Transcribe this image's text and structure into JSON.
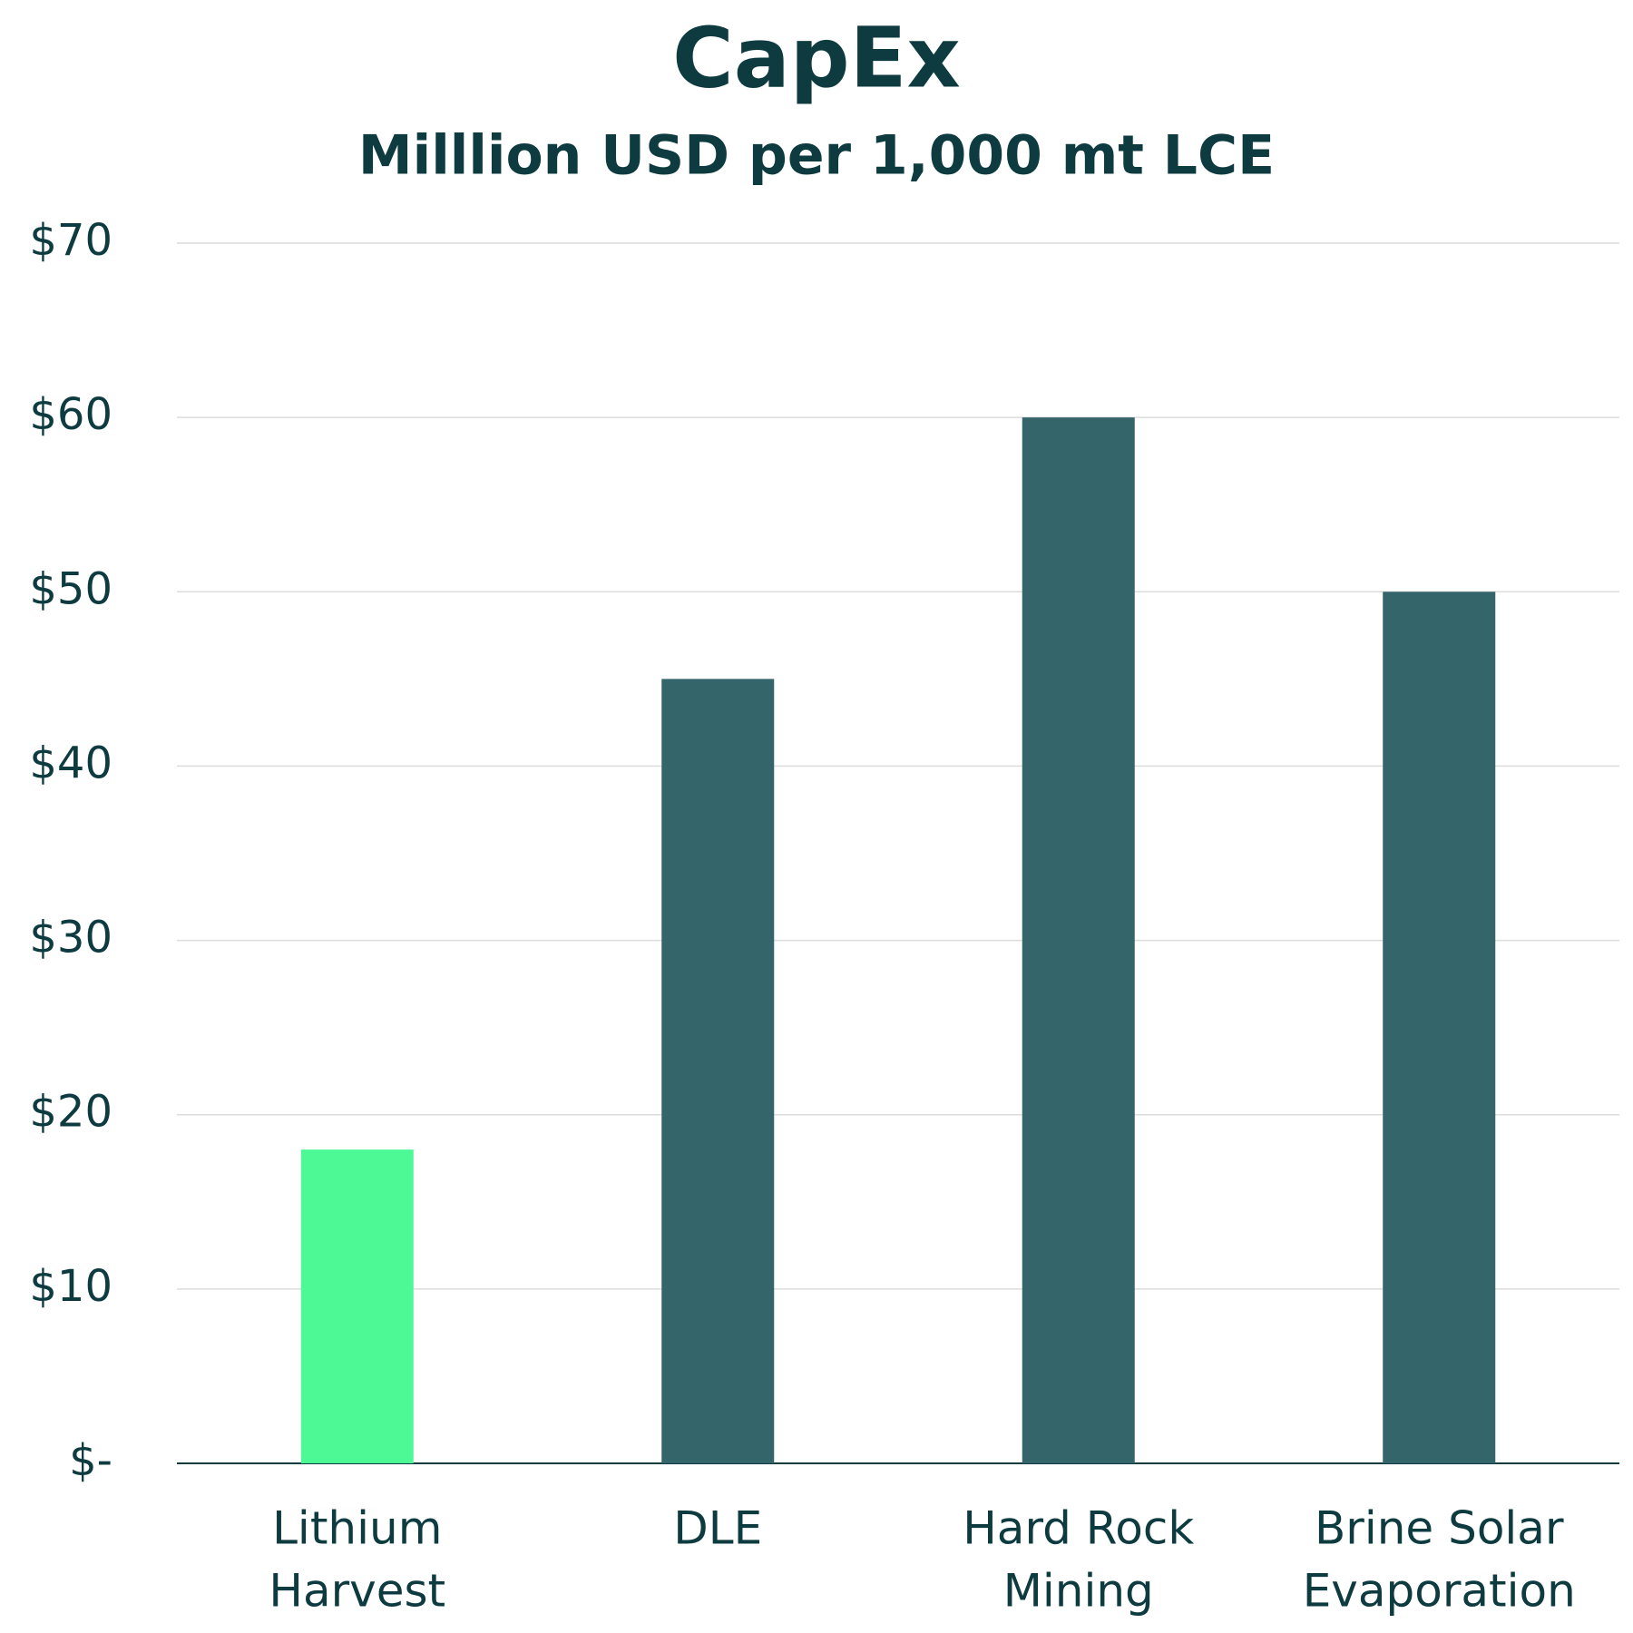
{
  "chart_data": {
    "type": "bar",
    "title": "CapEx",
    "subtitle": "Milllion USD per 1,000 mt LCE",
    "categories": [
      [
        "Lithium",
        "Harvest"
      ],
      [
        "DLE"
      ],
      [
        "Hard Rock",
        "Mining"
      ],
      [
        "Brine Solar",
        "Evaporation"
      ]
    ],
    "values": [
      18,
      45,
      60,
      50
    ],
    "colors": [
      "#4cf995",
      "#34656a",
      "#34656a",
      "#34656a"
    ],
    "ylim": [
      0,
      70
    ],
    "yticks": [
      {
        "value": 0,
        "label": "$-"
      },
      {
        "value": 10,
        "label": "$10"
      },
      {
        "value": 20,
        "label": "$20"
      },
      {
        "value": 30,
        "label": "$30"
      },
      {
        "value": 40,
        "label": "$40"
      },
      {
        "value": 50,
        "label": "$50"
      },
      {
        "value": 60,
        "label": "$60"
      },
      {
        "value": 70,
        "label": "$70"
      }
    ],
    "grid": true
  }
}
